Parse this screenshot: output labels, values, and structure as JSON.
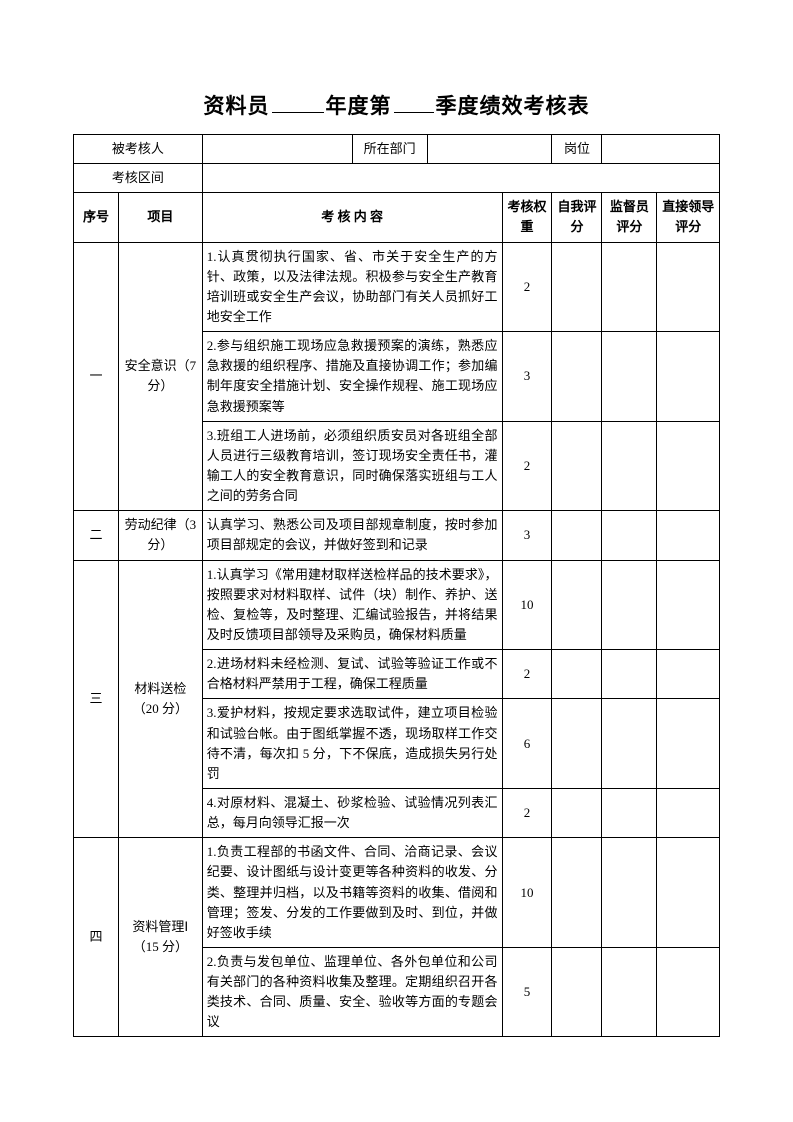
{
  "title": {
    "prefix": "资料员",
    "mid1": "年度第",
    "mid2": "季度绩效考核表"
  },
  "hdr": {
    "person_label": "被考核人",
    "dept_label": "所在部门",
    "post_label": "岗位",
    "period_label": "考核区间",
    "person_val": "",
    "dept_val": "",
    "post_val": "",
    "period_val": ""
  },
  "cols": {
    "seq": "序号",
    "item": "项目",
    "content": "考 核 内 容",
    "weight": "考核权重",
    "self": "自我评分",
    "sup": "监督员评分",
    "lead": "直接领导评分"
  },
  "sections": [
    {
      "seq": "一",
      "item": "安全意识（7 分）",
      "rows": [
        {
          "text": "1.认真贯彻执行国家、省、市关于安全生产的方针、政策，以及法律法规。积极参与安全生产教育培训班或安全生产会议，协助部门有关人员抓好工地安全工作",
          "weight": "2"
        },
        {
          "text": "2.参与组织施工现场应急救援预案的演练，熟悉应急救援的组织程序、措施及直接协调工作；参加编制年度安全措施计划、安全操作规程、施工现场应急救援预案等",
          "weight": "3"
        },
        {
          "text": "3.班组工人进场前，必须组织质安员对各班组全部人员进行三级教育培训，签订现场安全责任书，灌输工人的安全教育意识，同时确保落实班组与工人之间的劳务合同",
          "weight": "2"
        }
      ]
    },
    {
      "seq": "二",
      "item": "劳动纪律（3 分）",
      "rows": [
        {
          "text": "认真学习、熟悉公司及项目部规章制度，按时参加项目部规定的会议，并做好签到和记录",
          "weight": "3"
        }
      ]
    },
    {
      "seq": "三",
      "item": "材料送检（20 分）",
      "rows": [
        {
          "text": "1.认真学习《常用建材取样送检样品的技术要求》，按照要求对材料取样、试件（块）制作、养护、送检、复检等，及时整理、汇编试验报告，并将结果及时反馈项目部领导及采购员，确保材料质量",
          "weight": "10"
        },
        {
          "text": "2.进场材料未经检测、复试、试验等验证工作或不合格材料严禁用于工程，确保工程质量",
          "weight": "2"
        },
        {
          "text": "3.爱护材料，按规定要求选取试件，建立项目检验和试验台帐。由于图纸掌握不透，现场取样工作交待不清，每次扣 5 分，下不保底，造成损失另行处罚",
          "weight": "6"
        },
        {
          "text": "4.对原材料、混凝土、砂浆检验、试验情况列表汇总，每月向领导汇报一次",
          "weight": "2"
        }
      ]
    },
    {
      "seq": "四",
      "item": "资料管理Ⅰ（15 分）",
      "rows": [
        {
          "text": "1.负责工程部的书函文件、合同、洽商记录、会议纪要、设计图纸与设计变更等各种资料的收发、分类、整理并归档，以及书籍等资料的收集、借阅和管理；签发、分发的工作要做到及时、到位，并做好签收手续",
          "weight": "10"
        },
        {
          "text": "2.负责与发包单位、监理单位、各外包单位和公司有关部门的各种资料收集及整理。定期组织召开各类技术、合同、质量、安全、验收等方面的专题会议",
          "weight": "5"
        }
      ]
    }
  ]
}
